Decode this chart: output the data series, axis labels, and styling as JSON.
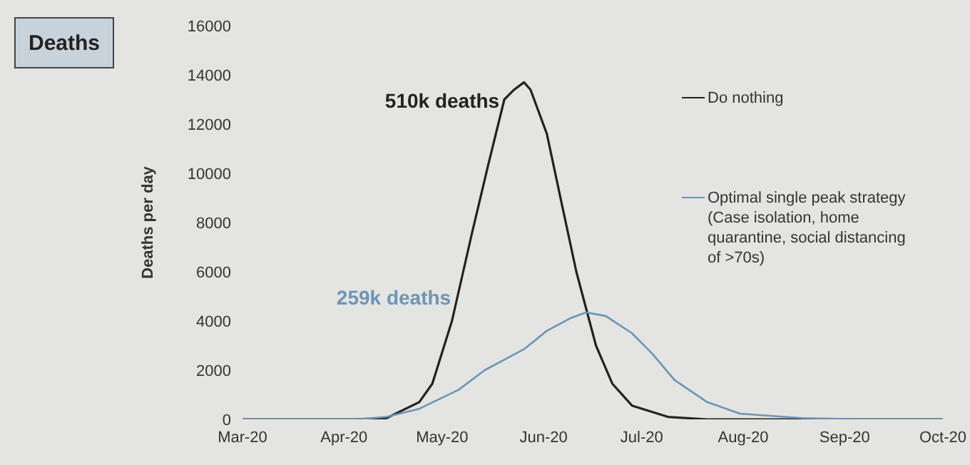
{
  "chart_data": {
    "type": "line",
    "title": "Deaths",
    "ylabel": "Deaths per day",
    "series": [
      {
        "name": "Do nothing",
        "color": "#222222",
        "x": [
          "2020-03-01",
          "2020-04-05",
          "2020-04-14",
          "2020-04-24",
          "2020-04-28",
          "2020-05-04",
          "2020-05-10",
          "2020-05-15",
          "2020-05-20",
          "2020-05-23",
          "2020-05-26",
          "2020-05-28",
          "2020-06-02",
          "2020-06-06",
          "2020-06-11",
          "2020-06-17",
          "2020-06-22",
          "2020-06-28",
          "2020-07-09",
          "2020-07-21",
          "2020-10-01"
        ],
        "values": [
          0,
          0,
          50,
          700,
          1450,
          4000,
          7500,
          10300,
          13000,
          13400,
          13700,
          13400,
          11600,
          9100,
          6000,
          3000,
          1450,
          560,
          100,
          0,
          0
        ]
      },
      {
        "name": "Optimal single peak strategy (Case isolation, home quarantine, social distancing of >70s)",
        "color": "#6f93b5",
        "x": [
          "2020-03-01",
          "2020-04-05",
          "2020-04-14",
          "2020-04-24",
          "2020-05-06",
          "2020-05-14",
          "2020-05-26",
          "2020-06-02",
          "2020-06-09",
          "2020-06-14",
          "2020-06-20",
          "2020-06-28",
          "2020-07-04",
          "2020-07-11",
          "2020-07-21",
          "2020-07-31",
          "2020-08-19",
          "2020-09-08",
          "2020-10-01"
        ],
        "values": [
          0,
          0,
          100,
          430,
          1200,
          2000,
          2850,
          3600,
          4100,
          4350,
          4200,
          3500,
          2700,
          1600,
          700,
          230,
          50,
          0,
          0
        ]
      }
    ],
    "annotations": [
      "510k deaths",
      "259k deaths"
    ],
    "xlim": [
      "2020-03-01",
      "2020-10-01"
    ],
    "xticks": [
      {
        "value": "2020-03-01",
        "label": "Mar-20"
      },
      {
        "value": "2020-04-01",
        "label": "Apr-20"
      },
      {
        "value": "2020-05-01",
        "label": "May-20"
      },
      {
        "value": "2020-06-01",
        "label": "Jun-20"
      },
      {
        "value": "2020-07-01",
        "label": "Jul-20"
      },
      {
        "value": "2020-08-01",
        "label": "Aug-20"
      },
      {
        "value": "2020-09-01",
        "label": "Sep-20"
      },
      {
        "value": "2020-10-01",
        "label": "Oct-20"
      }
    ],
    "ylim": [
      0,
      16000
    ],
    "yticks": [
      0,
      2000,
      4000,
      6000,
      8000,
      10000,
      12000,
      14000,
      16000
    ],
    "grid": false,
    "legend": "top right",
    "marker": "none",
    "line_style": "solid"
  }
}
